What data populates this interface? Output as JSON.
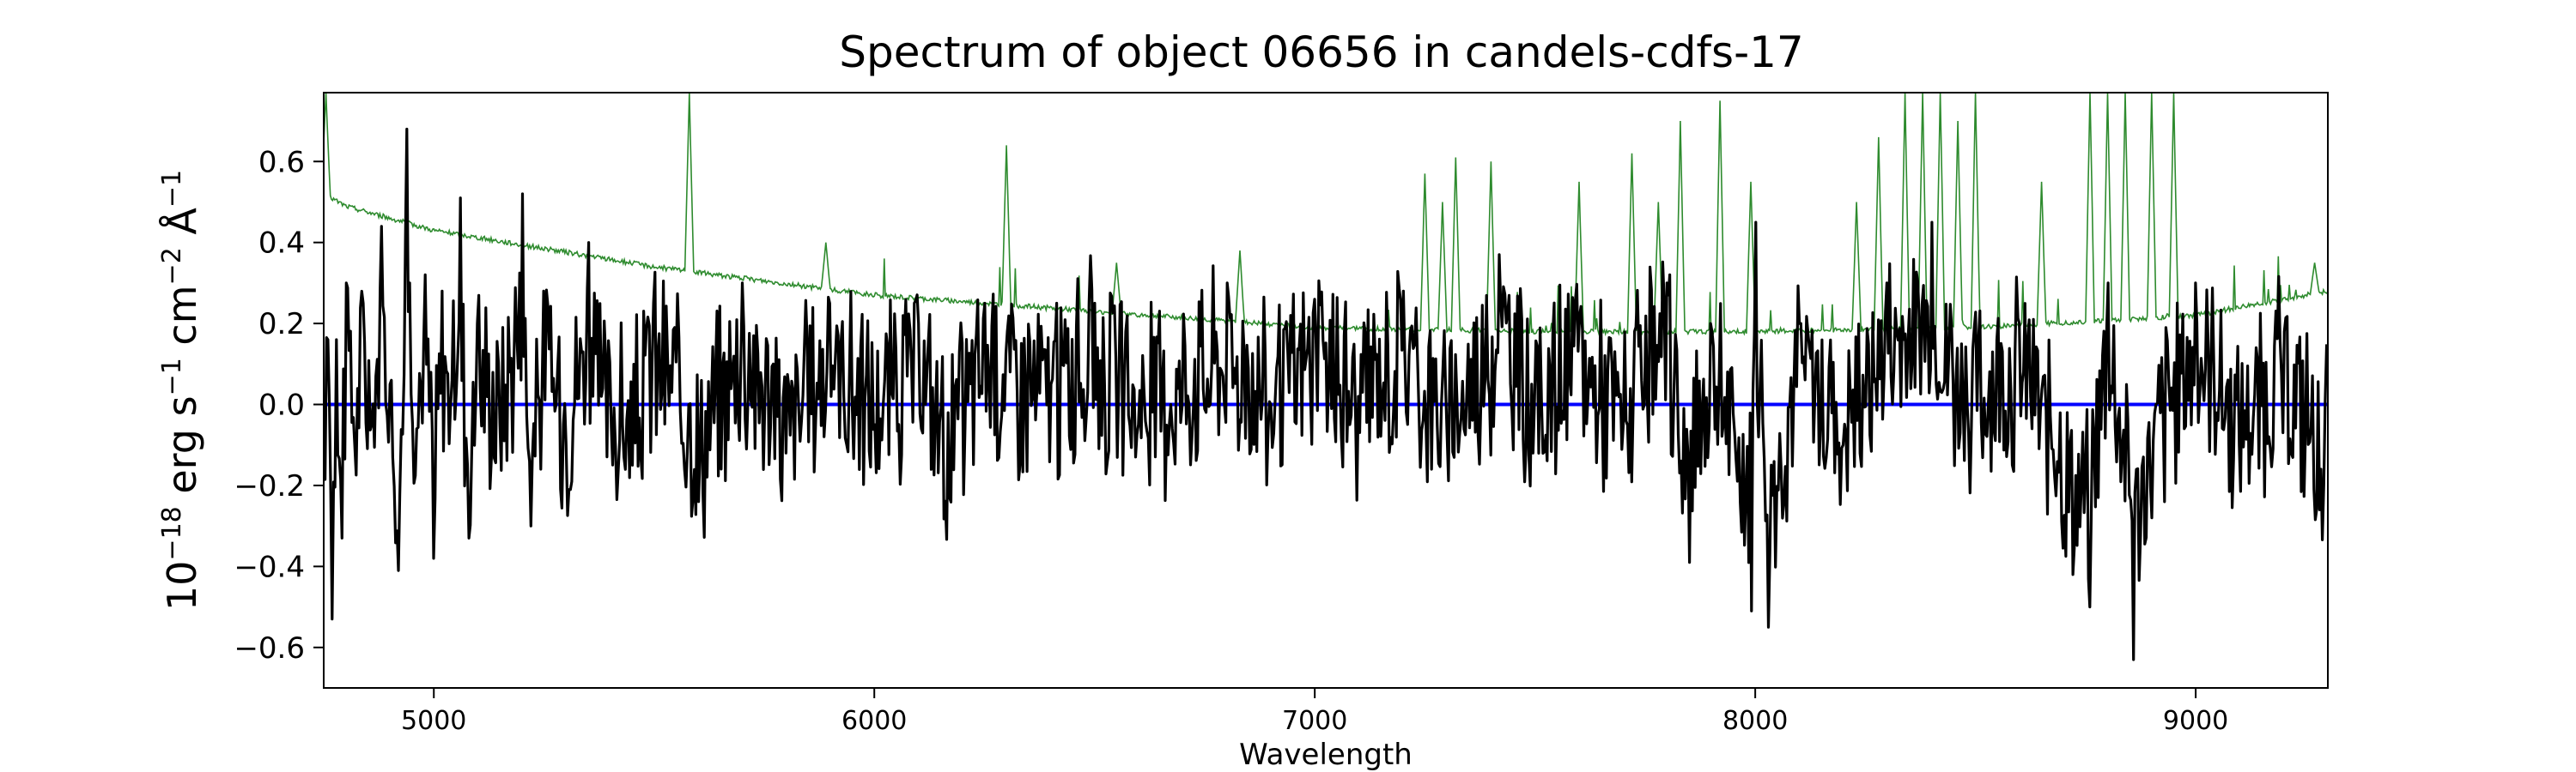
{
  "chart_data": {
    "type": "line",
    "title": "Spectrum of object 06656 in candels-cdfs-17",
    "xlabel": "Wavelength",
    "ylabel_parts": {
      "base": "10",
      "exp_power": "−18",
      "erg": " erg s",
      "exp_s": "−1",
      "cm": " cm",
      "exp_cm": "−2",
      "angstrom": " Å",
      "exp_a": "−1"
    },
    "xlim": [
      4750,
      9300
    ],
    "ylim": [
      -0.7,
      0.77
    ],
    "x_ticks": [
      5000,
      6000,
      7000,
      8000,
      9000
    ],
    "x_tick_labels": [
      "5000",
      "6000",
      "7000",
      "8000",
      "9000"
    ],
    "y_ticks": [
      -0.6,
      -0.4,
      -0.2,
      0.0,
      0.2,
      0.4,
      0.6
    ],
    "y_tick_labels": [
      "−0.6",
      "−0.4",
      "−0.2",
      "0.0",
      "0.2",
      "0.4",
      "0.6"
    ],
    "grid": false,
    "series": [
      {
        "color": "#000000",
        "style": "noisy-spectrum",
        "x_range": [
          4750,
          9300
        ],
        "points": [
          [
            4750,
            -0.05
          ],
          [
            4760,
            0.16
          ],
          [
            4770,
            -0.53
          ],
          [
            4780,
            0.16
          ],
          [
            4790,
            -0.33
          ],
          [
            4800,
            0.3
          ],
          [
            4820,
            -0.1
          ],
          [
            4840,
            0.25
          ],
          [
            4860,
            -0.05
          ],
          [
            4880,
            0.44
          ],
          [
            4900,
            0.05
          ],
          [
            4920,
            -0.41
          ],
          [
            4940,
            0.68
          ],
          [
            4960,
            -0.06
          ],
          [
            4980,
            0.32
          ],
          [
            5000,
            -0.38
          ],
          [
            5020,
            0.28
          ],
          [
            5040,
            0.06
          ],
          [
            5060,
            0.51
          ],
          [
            5080,
            -0.33
          ],
          [
            5100,
            0.2
          ],
          [
            5150,
            -0.05
          ],
          [
            5200,
            0.52
          ],
          [
            5220,
            -0.3
          ],
          [
            5250,
            0.28
          ],
          [
            5300,
            -0.1
          ],
          [
            5350,
            0.4
          ],
          [
            5380,
            0.02
          ],
          [
            5450,
            -0.15
          ],
          [
            5500,
            0.25
          ],
          [
            5580,
            0.0
          ],
          [
            5600,
            -0.24
          ],
          [
            5700,
            0.3
          ],
          [
            5800,
            -0.12
          ],
          [
            5900,
            0.25
          ],
          [
            6000,
            -0.05
          ],
          [
            6100,
            0.2
          ],
          [
            6170,
            -0.23
          ],
          [
            6250,
            0.25
          ],
          [
            6400,
            0.05
          ],
          [
            6500,
            0.25
          ],
          [
            6600,
            -0.05
          ],
          [
            6800,
            0.3
          ],
          [
            6900,
            0.0
          ],
          [
            7000,
            0.26
          ],
          [
            7100,
            0.02
          ],
          [
            7200,
            0.28
          ],
          [
            7300,
            -0.08
          ],
          [
            7420,
            0.37
          ],
          [
            7500,
            0.0
          ],
          [
            7600,
            0.22
          ],
          [
            7700,
            -0.05
          ],
          [
            7800,
            0.3
          ],
          [
            7850,
            -0.39
          ],
          [
            7900,
            0.2
          ],
          [
            7990,
            -0.51
          ],
          [
            8000,
            0.45
          ],
          [
            8030,
            -0.55
          ],
          [
            8100,
            0.2
          ],
          [
            8200,
            -0.1
          ],
          [
            8300,
            0.3
          ],
          [
            8400,
            0.45
          ],
          [
            8480,
            0.0
          ],
          [
            8600,
            0.2
          ],
          [
            8720,
            -0.42
          ],
          [
            8760,
            -0.5
          ],
          [
            8800,
            0.3
          ],
          [
            8860,
            -0.63
          ],
          [
            8900,
            -0.28
          ],
          [
            9000,
            0.3
          ],
          [
            9100,
            -0.1
          ],
          [
            9200,
            0.18
          ],
          [
            9280,
            -0.26
          ],
          [
            9300,
            -0.12
          ]
        ]
      },
      {
        "color": "#2e8b2e",
        "style": "error-spectrum",
        "baseline": [
          [
            4750,
            0.52
          ],
          [
            4800,
            0.49
          ],
          [
            5000,
            0.43
          ],
          [
            5500,
            0.34
          ],
          [
            6000,
            0.27
          ],
          [
            6500,
            0.23
          ],
          [
            7000,
            0.19
          ],
          [
            7500,
            0.18
          ],
          [
            8000,
            0.18
          ],
          [
            8500,
            0.19
          ],
          [
            9000,
            0.22
          ],
          [
            9300,
            0.28
          ]
        ],
        "peaks": [
          [
            4755,
            0.77
          ],
          [
            5580,
            0.77
          ],
          [
            5890,
            0.4
          ],
          [
            6300,
            0.64
          ],
          [
            6550,
            0.35
          ],
          [
            6830,
            0.38
          ],
          [
            7250,
            0.57
          ],
          [
            7290,
            0.5
          ],
          [
            7320,
            0.61
          ],
          [
            7400,
            0.6
          ],
          [
            7600,
            0.55
          ],
          [
            7720,
            0.62
          ],
          [
            7780,
            0.5
          ],
          [
            7830,
            0.7
          ],
          [
            7920,
            0.75
          ],
          [
            7990,
            0.55
          ],
          [
            8230,
            0.5
          ],
          [
            8280,
            0.66
          ],
          [
            8340,
            0.77
          ],
          [
            8380,
            0.77
          ],
          [
            8420,
            0.77
          ],
          [
            8460,
            0.7
          ],
          [
            8500,
            0.77
          ],
          [
            8650,
            0.55
          ],
          [
            8760,
            0.77
          ],
          [
            8800,
            0.77
          ],
          [
            8840,
            0.77
          ],
          [
            8900,
            0.77
          ],
          [
            8950,
            0.77
          ],
          [
            9270,
            0.35
          ]
        ]
      },
      {
        "color": "#0000ff",
        "style": "zero-line",
        "y": 0.0
      }
    ]
  }
}
